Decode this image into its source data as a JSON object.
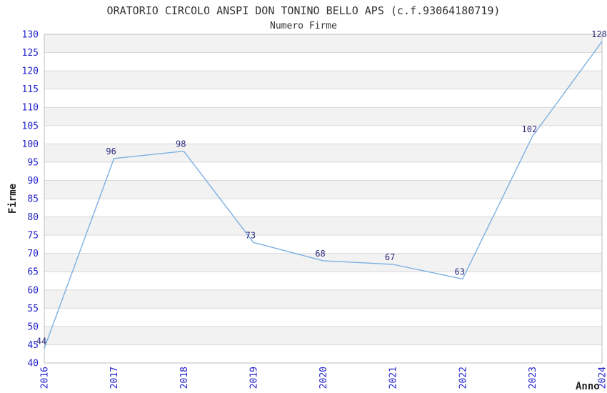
{
  "chart_data": {
    "type": "line",
    "title": "ORATORIO CIRCOLO ANSPI DON TONINO BELLO APS (c.f.93064180719)",
    "subtitle": "Numero Firme",
    "xlabel": "Anno",
    "ylabel": "Firme",
    "x": [
      2016,
      2017,
      2018,
      2019,
      2020,
      2021,
      2022,
      2023,
      2024
    ],
    "values": [
      44,
      96,
      98,
      73,
      68,
      67,
      63,
      102,
      128
    ],
    "point_labels": [
      "44",
      "96",
      "98",
      "73",
      "68",
      "67",
      "63",
      "102",
      "128"
    ],
    "ylim": [
      40,
      130
    ],
    "ytick_step": 5,
    "grid": true,
    "legend": "none",
    "colors": {
      "series_line": "#7db0e2",
      "tick_label": "#2222cc",
      "point_label": "#2a2a7d",
      "band_fill": "#f2f2f2",
      "grid_line": "#d9d9d9",
      "plot_frame": "#bfbfbf",
      "title_text": "#333333"
    }
  }
}
